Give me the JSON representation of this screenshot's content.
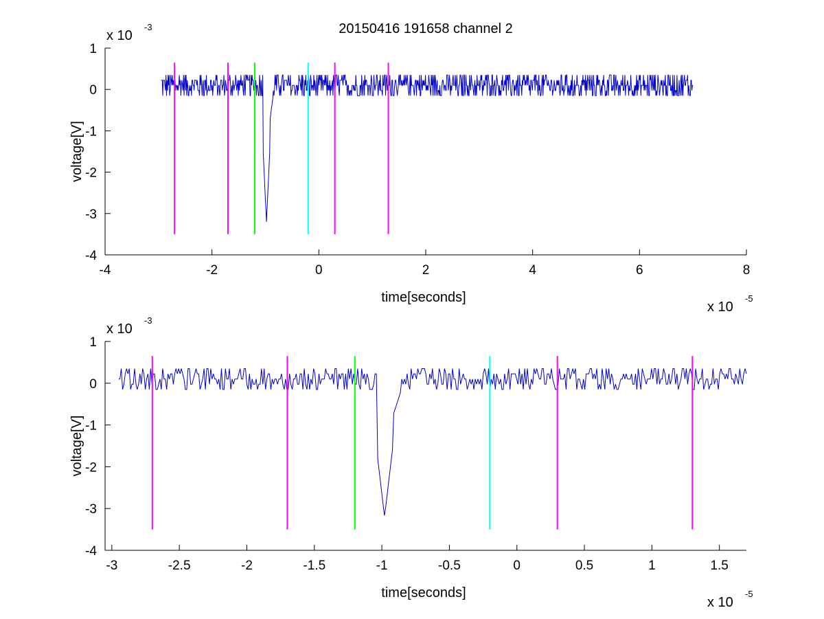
{
  "title": "20150416 191658 channel 2",
  "colors": {
    "signal": "#0000cc",
    "magenta": "#ff00ff",
    "green": "#00ff00",
    "cyan": "#00ffff",
    "axis": "#000000"
  },
  "chart_data": [
    {
      "type": "line",
      "title": "20150416 191658 channel 2",
      "xlabel": "time[seconds]",
      "ylabel": "voltage[V]",
      "x_exponent": "x 10",
      "x_exponent_power": "-5",
      "y_exponent": "x 10",
      "y_exponent_power": "-3",
      "xlim": [
        -4,
        8
      ],
      "ylim": [
        -4,
        1
      ],
      "xticks": [
        -4,
        -2,
        0,
        2,
        4,
        6,
        8
      ],
      "xtick_labels": [
        "-4",
        "-2",
        "0",
        "2",
        "4",
        "6",
        "8"
      ],
      "yticks": [
        -4,
        -3,
        -2,
        -1,
        0,
        1
      ],
      "ytick_labels": [
        "-4",
        "-3",
        "-2",
        "-1",
        "0",
        "1"
      ],
      "grid": false,
      "series": [
        {
          "color": "#0000cc",
          "x_range": [
            -2.95,
            7.0
          ],
          "baseline": 0.1,
          "noise_amplitude": 0.25,
          "spike": {
            "x": -0.98,
            "min": -3.2
          }
        }
      ],
      "markers": [
        {
          "x": -2.7,
          "color": "#ff00ff",
          "y_range": [
            -3.5,
            0.65
          ]
        },
        {
          "x": -1.7,
          "color": "#ff00ff",
          "y_range": [
            -3.5,
            0.65
          ]
        },
        {
          "x": -1.2,
          "color": "#00ff00",
          "y_range": [
            -3.5,
            0.65
          ]
        },
        {
          "x": -0.2,
          "color": "#00ffff",
          "y_range": [
            -3.5,
            0.65
          ]
        },
        {
          "x": 0.3,
          "color": "#ff00ff",
          "y_range": [
            -3.5,
            0.65
          ]
        },
        {
          "x": 1.3,
          "color": "#ff00ff",
          "y_range": [
            -3.5,
            0.65
          ]
        }
      ]
    },
    {
      "type": "line",
      "title": "",
      "xlabel": "time[seconds]",
      "ylabel": "voltage[V]",
      "x_exponent": "x 10",
      "x_exponent_power": "-5",
      "y_exponent": "x 10",
      "y_exponent_power": "-3",
      "xlim": [
        -3.05,
        1.7
      ],
      "ylim": [
        -4,
        1
      ],
      "xticks": [
        -3,
        -2.5,
        -2,
        -1.5,
        -1,
        -0.5,
        0,
        0.5,
        1,
        1.5
      ],
      "xtick_labels": [
        "-3",
        "-2.5",
        "-2",
        "-1.5",
        "-1",
        "-0.5",
        "0",
        "0.5",
        "1",
        "1.5"
      ],
      "yticks": [
        -4,
        -3,
        -2,
        -1,
        0,
        1
      ],
      "ytick_labels": [
        "-4",
        "-3",
        "-2",
        "-1",
        "0",
        "1"
      ],
      "grid": false,
      "series": [
        {
          "color": "#0000cc",
          "x_range": [
            -2.95,
            1.7
          ],
          "baseline": 0.1,
          "noise_amplitude": 0.25,
          "spike": {
            "x": -0.98,
            "min": -3.2
          }
        }
      ],
      "markers": [
        {
          "x": -2.7,
          "color": "#ff00ff",
          "y_range": [
            -3.5,
            0.65
          ]
        },
        {
          "x": -1.7,
          "color": "#ff00ff",
          "y_range": [
            -3.5,
            0.65
          ]
        },
        {
          "x": -1.2,
          "color": "#00ff00",
          "y_range": [
            -3.5,
            0.65
          ]
        },
        {
          "x": -0.2,
          "color": "#00ffff",
          "y_range": [
            -3.5,
            0.65
          ]
        },
        {
          "x": 0.3,
          "color": "#ff00ff",
          "y_range": [
            -3.5,
            0.65
          ]
        },
        {
          "x": 1.3,
          "color": "#ff00ff",
          "y_range": [
            -3.5,
            0.65
          ]
        }
      ]
    }
  ]
}
